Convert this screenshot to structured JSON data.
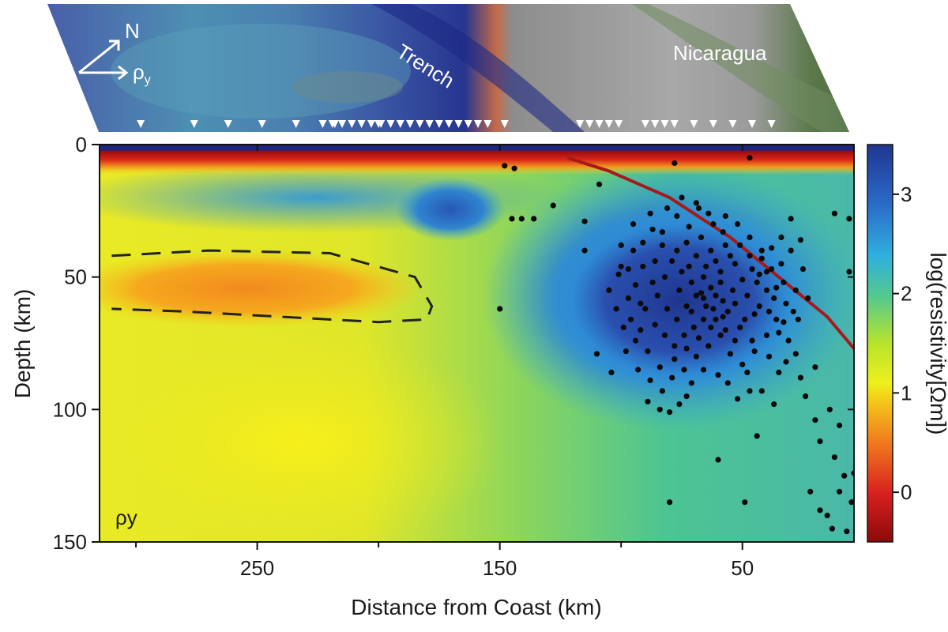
{
  "chart_data": {
    "type": "heatmap",
    "xlabel": "Distance from Coast (km)",
    "ylabel": "Depth (km)",
    "colorbar_label": "log(resistivity[Ωm])",
    "panel_label": "ρy",
    "xlim": [
      315,
      4
    ],
    "ylim": [
      0,
      150
    ],
    "x_reversed": true,
    "y_reversed": true,
    "xticks": [
      250,
      150,
      50
    ],
    "xtick_labels": [
      "250",
      "150",
      "50"
    ],
    "yticks": [
      0,
      50,
      100,
      150
    ],
    "ytick_labels": [
      "0",
      "50",
      "100",
      "150"
    ],
    "colorbar_range": [
      -0.5,
      3.5
    ],
    "colorbar_ticks": [
      0,
      1,
      2,
      3
    ],
    "colorbar_tick_labels": [
      "0",
      "1",
      "2",
      "3"
    ],
    "colorscale": [
      "#8b0a0a",
      "#d81f1f",
      "#f07a1e",
      "#f4c51a",
      "#eef01c",
      "#b8e42c",
      "#52c890",
      "#2fb0dd",
      "#2a6bc8",
      "#1f3690"
    ],
    "map_labels": {
      "trench": "Trench",
      "country": "Nicaragua",
      "north": "N",
      "rho": "ρ",
      "rho_sub": "y"
    },
    "stations_km": [
      298,
      276,
      262,
      248,
      234,
      218,
      200,
      223,
      219,
      215,
      211,
      207,
      203,
      199,
      195,
      191,
      187,
      183,
      179,
      175,
      171,
      167,
      163,
      159,
      155,
      148,
      117,
      113,
      109,
      105,
      101,
      90,
      86,
      82,
      78,
      70,
      62,
      54,
      46,
      38
    ],
    "conductor_outline": [
      [
        310,
        42
      ],
      [
        270,
        40
      ],
      [
        220,
        41
      ],
      [
        185,
        50
      ],
      [
        178,
        61
      ],
      [
        180,
        66
      ],
      [
        200,
        67
      ],
      [
        240,
        65
      ],
      [
        280,
        63
      ],
      [
        310,
        62
      ]
    ],
    "slab_interface": [
      [
        122,
        5
      ],
      [
        105,
        10
      ],
      [
        80,
        20
      ],
      [
        55,
        35
      ],
      [
        35,
        50
      ],
      [
        15,
        65
      ],
      [
        4,
        77
      ]
    ],
    "earthquakes": [
      [
        148,
        8
      ],
      [
        144,
        9
      ],
      [
        128,
        23
      ],
      [
        145,
        28
      ],
      [
        141,
        28
      ],
      [
        136,
        28
      ],
      [
        150,
        62
      ],
      [
        109,
        15
      ],
      [
        115,
        29
      ],
      [
        115,
        40
      ],
      [
        110,
        79
      ],
      [
        104,
        86
      ],
      [
        100,
        46
      ],
      [
        97,
        58
      ],
      [
        92,
        60
      ],
      [
        89,
        97
      ],
      [
        84,
        100
      ],
      [
        80,
        101
      ],
      [
        76,
        98
      ],
      [
        73,
        95
      ],
      [
        78,
        7
      ],
      [
        60,
        119
      ],
      [
        80,
        135
      ],
      [
        49,
        135
      ],
      [
        44,
        110
      ],
      [
        48,
        86
      ],
      [
        42,
        93
      ],
      [
        37,
        98
      ],
      [
        36,
        54
      ],
      [
        33,
        67
      ],
      [
        28,
        79
      ],
      [
        26,
        88
      ],
      [
        20,
        104
      ],
      [
        18,
        112
      ],
      [
        12,
        118
      ],
      [
        8,
        125
      ],
      [
        10,
        131
      ],
      [
        15,
        140
      ],
      [
        13,
        145
      ],
      [
        18,
        138
      ],
      [
        22,
        131
      ],
      [
        7,
        146
      ],
      [
        24,
        95
      ],
      [
        20,
        84
      ],
      [
        14,
        100
      ],
      [
        10,
        106
      ],
      [
        4,
        124
      ],
      [
        5,
        135
      ],
      [
        6,
        28
      ],
      [
        6,
        48
      ],
      [
        12,
        26
      ],
      [
        30,
        28
      ],
      [
        47,
        5
      ],
      [
        68,
        24
      ],
      [
        63,
        40
      ],
      [
        58,
        33
      ],
      [
        53,
        45
      ],
      [
        59,
        52
      ],
      [
        66,
        58
      ],
      [
        71,
        63
      ],
      [
        76,
        55
      ],
      [
        82,
        50
      ],
      [
        86,
        44
      ],
      [
        91,
        37
      ],
      [
        95,
        30
      ],
      [
        88,
        26
      ],
      [
        83,
        33
      ],
      [
        77,
        40
      ],
      [
        72,
        46
      ],
      [
        66,
        50
      ],
      [
        61,
        57
      ],
      [
        56,
        63
      ],
      [
        51,
        69
      ],
      [
        46,
        74
      ],
      [
        43,
        61
      ],
      [
        40,
        55
      ],
      [
        38,
        47
      ],
      [
        42,
        40
      ],
      [
        47,
        35
      ],
      [
        52,
        30
      ],
      [
        57,
        27
      ],
      [
        62,
        30
      ],
      [
        67,
        35
      ],
      [
        72,
        31
      ],
      [
        77,
        27
      ],
      [
        81,
        24
      ],
      [
        75,
        20
      ],
      [
        69,
        22
      ],
      [
        64,
        26
      ],
      [
        99,
        69
      ],
      [
        94,
        74
      ],
      [
        89,
        78
      ],
      [
        84,
        84
      ],
      [
        79,
        88
      ],
      [
        74,
        85
      ],
      [
        69,
        80
      ],
      [
        64,
        76
      ],
      [
        59,
        72
      ],
      [
        55,
        79
      ],
      [
        50,
        83
      ],
      [
        45,
        78
      ],
      [
        40,
        72
      ],
      [
        36,
        66
      ],
      [
        32,
        60
      ],
      [
        28,
        55
      ],
      [
        34,
        45
      ],
      [
        30,
        40
      ],
      [
        26,
        36
      ],
      [
        100,
        38
      ],
      [
        97,
        47
      ],
      [
        94,
        53
      ],
      [
        90,
        62
      ],
      [
        86,
        68
      ],
      [
        82,
        72
      ],
      [
        78,
        76
      ],
      [
        74,
        72
      ],
      [
        70,
        69
      ],
      [
        66,
        66
      ],
      [
        62,
        62
      ],
      [
        58,
        59
      ],
      [
        54,
        55
      ],
      [
        50,
        51
      ],
      [
        46,
        47
      ],
      [
        42,
        43
      ],
      [
        38,
        39
      ],
      [
        34,
        35
      ],
      [
        87,
        32
      ],
      [
        83,
        38
      ],
      [
        79,
        44
      ],
      [
        75,
        48
      ],
      [
        71,
        52
      ],
      [
        67,
        56
      ],
      [
        63,
        54
      ],
      [
        59,
        48
      ],
      [
        55,
        42
      ],
      [
        51,
        38
      ],
      [
        47,
        42
      ],
      [
        43,
        49
      ],
      [
        39,
        63
      ],
      [
        35,
        71
      ],
      [
        31,
        74
      ],
      [
        27,
        66
      ],
      [
        23,
        58
      ],
      [
        25,
        47
      ],
      [
        29,
        63
      ],
      [
        33,
        52
      ],
      [
        105,
        55
      ],
      [
        102,
        62
      ],
      [
        98,
        78
      ],
      [
        93,
        85
      ],
      [
        88,
        89
      ],
      [
        83,
        93
      ],
      [
        78,
        81
      ],
      [
        73,
        77
      ],
      [
        68,
        73
      ],
      [
        63,
        69
      ],
      [
        58,
        65
      ],
      [
        53,
        60
      ],
      [
        48,
        57
      ],
      [
        44,
        52
      ],
      [
        40,
        48
      ],
      [
        37,
        58
      ],
      [
        73,
        37
      ],
      [
        69,
        42
      ],
      [
        65,
        46
      ],
      [
        61,
        44
      ],
      [
        57,
        38
      ],
      [
        85,
        57
      ],
      [
        81,
        62
      ],
      [
        77,
        66
      ],
      [
        73,
        61
      ],
      [
        69,
        57
      ],
      [
        65,
        61
      ],
      [
        61,
        66
      ],
      [
        57,
        70
      ],
      [
        53,
        74
      ],
      [
        49,
        66
      ],
      [
        45,
        64
      ],
      [
        95,
        40
      ],
      [
        91,
        46
      ],
      [
        87,
        52
      ],
      [
        101,
        49
      ],
      [
        96,
        66
      ],
      [
        92,
        70
      ],
      [
        60,
        87
      ],
      [
        56,
        90
      ],
      [
        52,
        96
      ],
      [
        47,
        93
      ],
      [
        66,
        85
      ],
      [
        71,
        90
      ],
      [
        39,
        80
      ],
      [
        35,
        86
      ],
      [
        32,
        82
      ]
    ]
  }
}
